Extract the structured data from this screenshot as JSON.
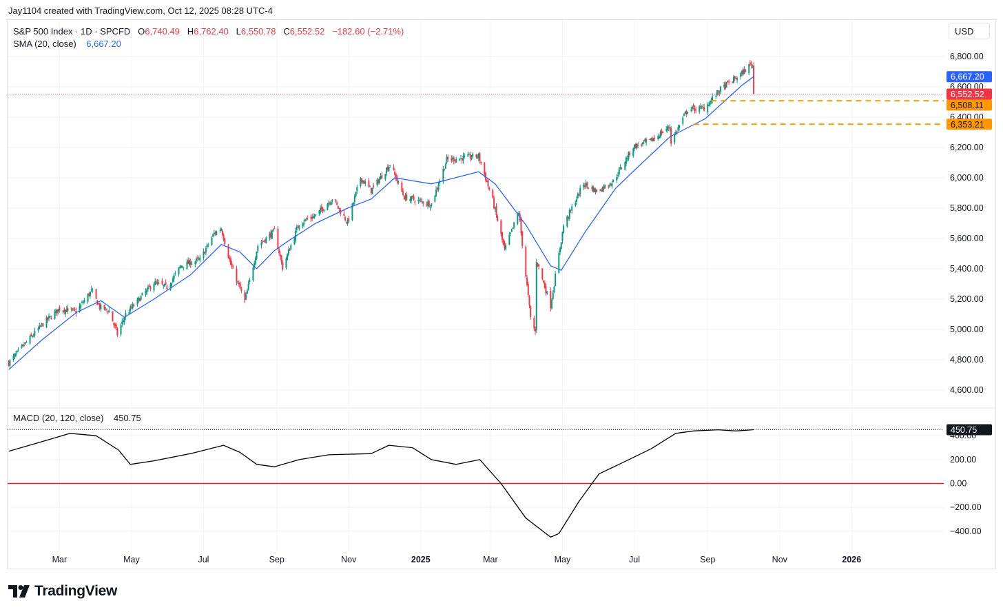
{
  "credit": "Jay1104 created with TradingView.com, Oct 12, 2025 08:28 UTC-4",
  "currency": "USD",
  "legend": {
    "symbol": "S&P 500 Index · 1D · SPCFD",
    "o_label": "O",
    "o_value": "6,740.49",
    "h_label": "H",
    "h_value": "6,762.40",
    "l_label": "L",
    "l_value": "6,550.78",
    "c_label": "C",
    "c_value": "6,552.52",
    "change": "−182.60 (−2.71%)",
    "sma_label": "SMA (20, close)",
    "sma_value": "6,667.20",
    "macd_label": "MACD (20, 120, close)",
    "macd_value": "450.75"
  },
  "brand": "TradingView",
  "colors": {
    "up": "#089981",
    "down": "#f23645",
    "sma": "#2962ff",
    "orange": "#ff9800",
    "macd": "#000000",
    "zero": "#e0232b"
  },
  "chart_data": [
    {
      "type": "candlestick",
      "series_name": "S&P 500 Index · 1D · SPCFD",
      "ylim": [
        4500,
        6900
      ],
      "y_ticks": [
        4600,
        4800,
        5000,
        5200,
        5400,
        5600,
        5800,
        6000,
        6200,
        6400,
        6600,
        6800
      ],
      "y_tick_labels": [
        "4,600.00",
        "4,800.00",
        "5,000.00",
        "5,200.00",
        "5,400.00",
        "5,600.00",
        "5,800.00",
        "6,000.00",
        "6,200.00",
        "6,400.00",
        "6,600.00",
        "6,800.00"
      ],
      "x_labels": [
        "Mar",
        "May",
        "Jul",
        "Sep",
        "Nov",
        "2025",
        "Mar",
        "May",
        "Jul",
        "Sep",
        "Nov",
        "2026"
      ],
      "x_label_dates": [
        "2024-03-01",
        "2024-05-01",
        "2024-07-01",
        "2024-09-01",
        "2024-11-01",
        "2025-01-01",
        "2025-03-01",
        "2025-05-01",
        "2025-07-01",
        "2025-09-01",
        "2025-11-01",
        "2026-01-01"
      ],
      "x_range": [
        "2024-01-17",
        "2026-03-20"
      ],
      "close_path": [
        [
          "2024-01-18",
          4780
        ],
        [
          "2024-02-01",
          4906
        ],
        [
          "2024-02-15",
          5029
        ],
        [
          "2024-03-01",
          5137
        ],
        [
          "2024-03-15",
          5117
        ],
        [
          "2024-03-28",
          5254
        ],
        [
          "2024-04-04",
          5147
        ],
        [
          "2024-04-12",
          5123
        ],
        [
          "2024-04-19",
          4967
        ],
        [
          "2024-04-26",
          5100
        ],
        [
          "2024-05-10",
          5222
        ],
        [
          "2024-05-20",
          5308
        ],
        [
          "2024-05-31",
          5277
        ],
        [
          "2024-06-12",
          5421
        ],
        [
          "2024-06-28",
          5460
        ],
        [
          "2024-07-10",
          5633
        ],
        [
          "2024-07-16",
          5667
        ],
        [
          "2024-07-24",
          5427
        ],
        [
          "2024-08-05",
          5186
        ],
        [
          "2024-08-16",
          5554
        ],
        [
          "2024-08-30",
          5648
        ],
        [
          "2024-09-06",
          5408
        ],
        [
          "2024-09-20",
          5702
        ],
        [
          "2024-10-04",
          5751
        ],
        [
          "2024-10-18",
          5864
        ],
        [
          "2024-10-31",
          5705
        ],
        [
          "2024-11-11",
          6001
        ],
        [
          "2024-11-20",
          5917
        ],
        [
          "2024-12-06",
          6090
        ],
        [
          "2024-12-18",
          5872
        ],
        [
          "2025-01-10",
          5827
        ],
        [
          "2025-01-23",
          6119
        ],
        [
          "2025-02-19",
          6144
        ],
        [
          "2025-03-03",
          5849
        ],
        [
          "2025-03-13",
          5522
        ],
        [
          "2025-03-25",
          5776
        ],
        [
          "2025-04-04",
          5074
        ],
        [
          "2025-04-08",
          4982
        ],
        [
          "2025-04-09",
          5457
        ],
        [
          "2025-04-21",
          5158
        ],
        [
          "2025-05-02",
          5686
        ],
        [
          "2025-05-19",
          5963
        ],
        [
          "2025-05-30",
          5911
        ],
        [
          "2025-06-13",
          5977
        ],
        [
          "2025-06-30",
          6205
        ],
        [
          "2025-07-15",
          6244
        ],
        [
          "2025-07-31",
          6339
        ],
        [
          "2025-08-01",
          6238
        ],
        [
          "2025-08-15",
          6450
        ],
        [
          "2025-08-29",
          6460
        ],
        [
          "2025-09-12",
          6584
        ],
        [
          "2025-09-30",
          6688
        ],
        [
          "2025-10-08",
          6753
        ],
        [
          "2025-10-09",
          6735
        ],
        [
          "2025-10-10",
          6552.52
        ]
      ],
      "sma_series": {
        "name": "SMA (20, close)",
        "last": 6667.2,
        "path": [
          [
            "2024-01-18",
            4735
          ],
          [
            "2024-02-15",
            4930
          ],
          [
            "2024-03-15",
            5110
          ],
          [
            "2024-04-05",
            5190
          ],
          [
            "2024-04-25",
            5080
          ],
          [
            "2024-05-20",
            5200
          ],
          [
            "2024-06-20",
            5360
          ],
          [
            "2024-07-16",
            5560
          ],
          [
            "2024-08-01",
            5510
          ],
          [
            "2024-08-15",
            5400
          ],
          [
            "2024-08-30",
            5520
          ],
          [
            "2024-09-12",
            5590
          ],
          [
            "2024-10-04",
            5700
          ],
          [
            "2024-10-31",
            5800
          ],
          [
            "2024-11-20",
            5860
          ],
          [
            "2024-12-10",
            6000
          ],
          [
            "2025-01-10",
            5960
          ],
          [
            "2025-02-19",
            6040
          ],
          [
            "2025-03-05",
            5960
          ],
          [
            "2025-03-31",
            5690
          ],
          [
            "2025-04-21",
            5420
          ],
          [
            "2025-04-30",
            5390
          ],
          [
            "2025-05-20",
            5640
          ],
          [
            "2025-06-15",
            5930
          ],
          [
            "2025-07-01",
            6050
          ],
          [
            "2025-07-31",
            6270
          ],
          [
            "2025-08-30",
            6390
          ],
          [
            "2025-09-30",
            6610
          ],
          [
            "2025-10-10",
            6667.2
          ]
        ]
      },
      "price_tags": [
        {
          "label": "6,667.20",
          "value": 6667.2,
          "color": "#2962ff"
        },
        {
          "label": "6,552.52",
          "value": 6552.52,
          "color": "#f23645"
        },
        {
          "label": "6,508.11",
          "value": 6508.11,
          "color": "#ff9800"
        },
        {
          "label": "6,353.21",
          "value": 6353.21,
          "color": "#ff9800"
        }
      ],
      "hidden_tick_labels": [
        "6,600.00",
        "6,400.00"
      ],
      "horizontal_levels": [
        {
          "value": 6508.11,
          "from": "2025-09-04",
          "style": "dashed",
          "color": "#ff9800"
        },
        {
          "value": 6353.21,
          "from": "2025-08-20",
          "style": "dashed",
          "color": "#ff9800"
        },
        {
          "value": 6552.52,
          "style": "dotted",
          "color": "#f23645"
        }
      ]
    },
    {
      "type": "line",
      "series_name": "MACD (20, 120, close)",
      "ylim": [
        -540,
        540
      ],
      "y_ticks": [
        -400,
        -200,
        0,
        200,
        400
      ],
      "y_tick_labels": [
        "−400.00",
        "−200.00",
        "0.00",
        "200.00",
        "400.00"
      ],
      "last_value": 450.75,
      "last_label": "450.75",
      "x": [
        "2024-01-18",
        "2024-02-15",
        "2024-03-10",
        "2024-04-01",
        "2024-04-20",
        "2024-04-30",
        "2024-05-20",
        "2024-06-20",
        "2024-07-18",
        "2024-08-01",
        "2024-08-15",
        "2024-08-30",
        "2024-09-20",
        "2024-10-15",
        "2024-11-20",
        "2024-12-05",
        "2024-12-25",
        "2025-01-10",
        "2025-01-31",
        "2025-02-20",
        "2025-03-10",
        "2025-03-31",
        "2025-04-21",
        "2025-04-28",
        "2025-05-15",
        "2025-06-01",
        "2025-06-20",
        "2025-07-15",
        "2025-08-05",
        "2025-08-20",
        "2025-09-10",
        "2025-09-25",
        "2025-10-10"
      ],
      "values": [
        270,
        350,
        420,
        400,
        280,
        160,
        190,
        250,
        320,
        260,
        160,
        140,
        200,
        240,
        250,
        320,
        300,
        200,
        160,
        200,
        0,
        -290,
        -450,
        -420,
        -150,
        80,
        170,
        290,
        420,
        440,
        450,
        440,
        450.75
      ]
    }
  ]
}
